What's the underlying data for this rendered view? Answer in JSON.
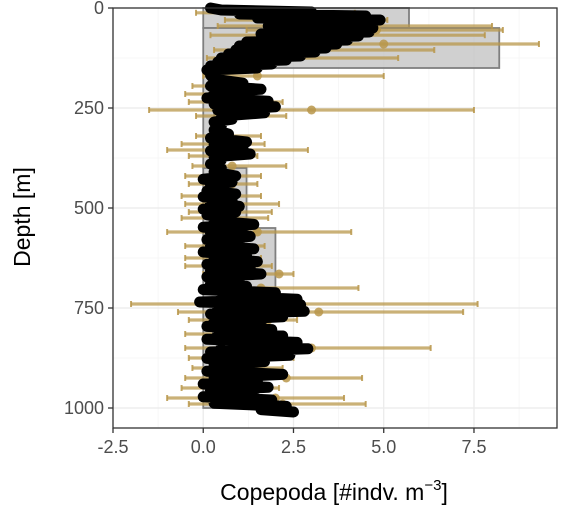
{
  "chart_data": {
    "type": "bar",
    "title": "",
    "xlabel": "Copepoda [#indv. m",
    "xlabel_superscript": "−3",
    "xlabel_suffix": "]",
    "ylabel": "Depth [m]",
    "xlim": [
      -2.5,
      9.8
    ],
    "ylim": [
      0,
      1050
    ],
    "y_reversed": true,
    "x_ticks": [
      -2.5,
      0,
      2.5,
      5,
      7.5
    ],
    "x_tick_labels": [
      "-2.5",
      "0.0",
      "2.5",
      "5.0",
      "7.5"
    ],
    "y_ticks": [
      0,
      250,
      500,
      750,
      1000
    ],
    "y_tick_labels": [
      "0",
      "250",
      "500",
      "750",
      "1000"
    ],
    "grid": true,
    "colors": {
      "bar_fill": "#c8c8c8",
      "bar_stroke": "#7f7f7f",
      "errorbar": "#b8974a",
      "trace": "#000000",
      "grid_major": "#ebebeb",
      "grid_minor": "#f5f5f5",
      "panel_border": "#333333"
    },
    "bars": [
      {
        "depth_top": 0,
        "depth_bottom": 50,
        "value": 5.7
      },
      {
        "depth_top": 50,
        "depth_bottom": 150,
        "value": 8.2
      },
      {
        "depth_top": 150,
        "depth_bottom": 400,
        "value": 0.3
      },
      {
        "depth_top": 400,
        "depth_bottom": 550,
        "value": 1.2
      },
      {
        "depth_top": 550,
        "depth_bottom": 700,
        "value": 2.0
      },
      {
        "depth_top": 700,
        "depth_bottom": 1000,
        "value": 1.1
      }
    ],
    "errorbars": [
      {
        "depth": 12,
        "mean": 1.0,
        "low": -0.2,
        "high": 4.2
      },
      {
        "depth": 30,
        "mean": 2.4,
        "low": 0.6,
        "high": 5.1
      },
      {
        "depth": 45,
        "mean": 3.2,
        "low": 0.4,
        "high": 8.0
      },
      {
        "depth": 55,
        "mean": 4.8,
        "low": 1.2,
        "high": 8.3
      },
      {
        "depth": 68,
        "mean": 3.8,
        "low": 0.2,
        "high": 7.8
      },
      {
        "depth": 90,
        "mean": 5.0,
        "low": 1.0,
        "high": 9.3
      },
      {
        "depth": 105,
        "mean": 2.6,
        "low": 0.3,
        "high": 6.4
      },
      {
        "depth": 125,
        "mean": 2.2,
        "low": 0.1,
        "high": 5.4
      },
      {
        "depth": 170,
        "mean": 1.5,
        "low": 0.0,
        "high": 5.0
      },
      {
        "depth": 195,
        "mean": 0.4,
        "low": -0.3,
        "high": 1.3
      },
      {
        "depth": 215,
        "mean": 0.6,
        "low": -0.5,
        "high": 1.4
      },
      {
        "depth": 235,
        "mean": 1.0,
        "low": -0.4,
        "high": 2.2
      },
      {
        "depth": 255,
        "mean": 3.0,
        "low": -1.5,
        "high": 7.5
      },
      {
        "depth": 270,
        "mean": 0.5,
        "low": -0.2,
        "high": 2.3
      },
      {
        "depth": 320,
        "mean": 0.4,
        "low": -0.2,
        "high": 1.6
      },
      {
        "depth": 340,
        "mean": 1.0,
        "low": -0.6,
        "high": 1.7
      },
      {
        "depth": 355,
        "mean": 0.8,
        "low": -1.0,
        "high": 2.9
      },
      {
        "depth": 370,
        "mean": 0.6,
        "low": -0.4,
        "high": 1.5
      },
      {
        "depth": 395,
        "mean": 0.8,
        "low": -0.3,
        "high": 2.3
      },
      {
        "depth": 420,
        "mean": 0.7,
        "low": -0.5,
        "high": 1.6
      },
      {
        "depth": 440,
        "mean": 0.8,
        "low": -0.4,
        "high": 1.5
      },
      {
        "depth": 470,
        "mean": 0.6,
        "low": -0.6,
        "high": 1.6
      },
      {
        "depth": 490,
        "mean": 0.8,
        "low": -0.5,
        "high": 2.1
      },
      {
        "depth": 510,
        "mean": 0.7,
        "low": -0.4,
        "high": 1.9
      },
      {
        "depth": 525,
        "mean": 0.6,
        "low": -0.6,
        "high": 1.8
      },
      {
        "depth": 560,
        "mean": 1.5,
        "low": -1.0,
        "high": 4.1
      },
      {
        "depth": 595,
        "mean": 0.8,
        "low": -0.5,
        "high": 1.7
      },
      {
        "depth": 625,
        "mean": 0.9,
        "low": -0.5,
        "high": 1.6
      },
      {
        "depth": 645,
        "mean": 1.0,
        "low": -0.5,
        "high": 1.9
      },
      {
        "depth": 665,
        "mean": 2.1,
        "low": 0.0,
        "high": 2.5
      },
      {
        "depth": 700,
        "mean": 1.6,
        "low": 0.0,
        "high": 4.3
      },
      {
        "depth": 740,
        "mean": 2.5,
        "low": -2.0,
        "high": 7.6
      },
      {
        "depth": 760,
        "mean": 3.2,
        "low": -0.7,
        "high": 7.2
      },
      {
        "depth": 780,
        "mean": 1.8,
        "low": -0.4,
        "high": 2.6
      },
      {
        "depth": 815,
        "mean": 1.5,
        "low": -0.5,
        "high": 2.2
      },
      {
        "depth": 850,
        "mean": 3.0,
        "low": -0.5,
        "high": 6.3
      },
      {
        "depth": 875,
        "mean": 1.2,
        "low": -0.4,
        "high": 2.5
      },
      {
        "depth": 900,
        "mean": 1.0,
        "low": -0.3,
        "high": 2.2
      },
      {
        "depth": 925,
        "mean": 2.3,
        "low": -0.5,
        "high": 4.4
      },
      {
        "depth": 950,
        "mean": 1.0,
        "low": -0.6,
        "high": 2.1
      },
      {
        "depth": 975,
        "mean": 2.0,
        "low": -1.0,
        "high": 3.9
      },
      {
        "depth": 990,
        "mean": 2.2,
        "low": -0.4,
        "high": 4.5
      }
    ],
    "trace_profile": [
      [
        0,
        0.2
      ],
      [
        5,
        0.5
      ],
      [
        10,
        3.0
      ],
      [
        15,
        1.0
      ],
      [
        20,
        4.5
      ],
      [
        25,
        1.5
      ],
      [
        30,
        4.9
      ],
      [
        35,
        2.0
      ],
      [
        40,
        4.6
      ],
      [
        45,
        1.8
      ],
      [
        50,
        4.7
      ],
      [
        55,
        2.3
      ],
      [
        60,
        4.6
      ],
      [
        65,
        1.6
      ],
      [
        70,
        4.3
      ],
      [
        75,
        2.1
      ],
      [
        80,
        4.0
      ],
      [
        85,
        1.2
      ],
      [
        90,
        3.7
      ],
      [
        95,
        1.0
      ],
      [
        100,
        3.4
      ],
      [
        105,
        0.9
      ],
      [
        110,
        3.1
      ],
      [
        115,
        0.7
      ],
      [
        120,
        2.7
      ],
      [
        125,
        0.5
      ],
      [
        130,
        2.3
      ],
      [
        135,
        0.4
      ],
      [
        140,
        1.9
      ],
      [
        145,
        0.2
      ],
      [
        150,
        1.5
      ],
      [
        155,
        0.1
      ],
      [
        160,
        0.3
      ],
      [
        168,
        0.2
      ],
      [
        178,
        0.3
      ],
      [
        188,
        1.1
      ],
      [
        195,
        0.2
      ],
      [
        203,
        1.6
      ],
      [
        210,
        0.3
      ],
      [
        218,
        1.3
      ],
      [
        225,
        0.1
      ],
      [
        233,
        1.8
      ],
      [
        240,
        0.3
      ],
      [
        247,
        2.0
      ],
      [
        255,
        0.4
      ],
      [
        262,
        1.7
      ],
      [
        270,
        0.5
      ],
      [
        278,
        0.8
      ],
      [
        285,
        0.3
      ],
      [
        295,
        0.5
      ],
      [
        305,
        0.3
      ],
      [
        315,
        0.7
      ],
      [
        325,
        0.2
      ],
      [
        335,
        1.2
      ],
      [
        342,
        0.3
      ],
      [
        350,
        1.1
      ],
      [
        357,
        0.2
      ],
      [
        365,
        1.3
      ],
      [
        372,
        0.3
      ],
      [
        380,
        0.5
      ],
      [
        390,
        0.2
      ],
      [
        400,
        0.5
      ],
      [
        410,
        0.3
      ],
      [
        420,
        0.9
      ],
      [
        428,
        0.0
      ],
      [
        435,
        0.8
      ],
      [
        442,
        0.2
      ],
      [
        450,
        0.6
      ],
      [
        458,
        0.1
      ],
      [
        465,
        0.9
      ],
      [
        472,
        0.0
      ],
      [
        480,
        0.8
      ],
      [
        488,
        0.2
      ],
      [
        496,
        1.0
      ],
      [
        503,
        0.0
      ],
      [
        510,
        0.9
      ],
      [
        517,
        0.1
      ],
      [
        525,
        0.7
      ],
      [
        533,
        0.3
      ],
      [
        541,
        1.4
      ],
      [
        548,
        0.0
      ],
      [
        556,
        1.1
      ],
      [
        563,
        0.2
      ],
      [
        571,
        1.3
      ],
      [
        579,
        0.1
      ],
      [
        587,
        1.0
      ],
      [
        594,
        0.2
      ],
      [
        602,
        1.4
      ],
      [
        610,
        0.0
      ],
      [
        618,
        1.2
      ],
      [
        626,
        0.3
      ],
      [
        634,
        1.5
      ],
      [
        641,
        0.1
      ],
      [
        649,
        1.3
      ],
      [
        657,
        0.2
      ],
      [
        665,
        1.6
      ],
      [
        672,
        0.1
      ],
      [
        680,
        1.0
      ],
      [
        688,
        0.2
      ],
      [
        696,
        1.2
      ],
      [
        704,
        0.0
      ],
      [
        712,
        2.0
      ],
      [
        720,
        0.5
      ],
      [
        728,
        2.6
      ],
      [
        735,
        -0.1
      ],
      [
        742,
        2.7
      ],
      [
        750,
        0.4
      ],
      [
        758,
        2.8
      ],
      [
        765,
        0.2
      ],
      [
        772,
        2.2
      ],
      [
        780,
        0.3
      ],
      [
        788,
        1.6
      ],
      [
        796,
        0.1
      ],
      [
        804,
        1.9
      ],
      [
        812,
        0.4
      ],
      [
        820,
        2.2
      ],
      [
        828,
        0.1
      ],
      [
        836,
        2.6
      ],
      [
        844,
        0.5
      ],
      [
        852,
        2.9
      ],
      [
        860,
        0.2
      ],
      [
        868,
        2.4
      ],
      [
        876,
        0.1
      ],
      [
        884,
        1.7
      ],
      [
        892,
        0.3
      ],
      [
        900,
        1.3
      ],
      [
        908,
        0.1
      ],
      [
        916,
        2.2
      ],
      [
        924,
        0.3
      ],
      [
        932,
        1.5
      ],
      [
        940,
        0.0
      ],
      [
        948,
        1.8
      ],
      [
        956,
        0.2
      ],
      [
        964,
        1.4
      ],
      [
        972,
        0.0
      ],
      [
        980,
        1.9
      ],
      [
        988,
        0.3
      ],
      [
        996,
        2.3
      ],
      [
        1004,
        1.6
      ],
      [
        1010,
        2.5
      ]
    ]
  }
}
